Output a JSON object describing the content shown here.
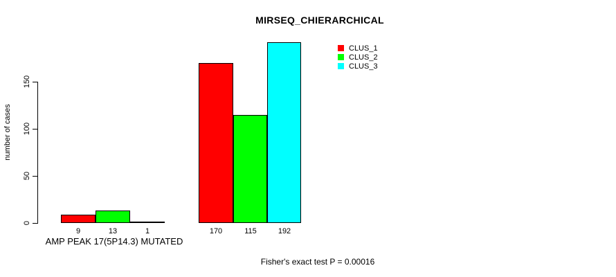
{
  "title": "MIRSEQ_CHIERARCHICAL",
  "footer": "Fisher's exact test P = 0.00016",
  "y_axis": {
    "label": "number of cases",
    "ticks": [
      0,
      50,
      100,
      150
    ]
  },
  "legend": {
    "items": [
      {
        "label": "CLUS_1",
        "color": "#ff0000"
      },
      {
        "label": "CLUS_2",
        "color": "#00ff00"
      },
      {
        "label": "CLUS_3",
        "color": "#00ffff"
      }
    ]
  },
  "chart_data": {
    "type": "bar",
    "title": "MIRSEQ_CHIERARCHICAL",
    "xlabel": "",
    "ylabel": "number of cases",
    "ylim": [
      0,
      195
    ],
    "yticks": [
      0,
      50,
      100,
      150
    ],
    "grid": false,
    "legend_position": "top-right",
    "series_names": [
      "CLUS_1",
      "CLUS_2",
      "CLUS_3"
    ],
    "colors": [
      "#ff0000",
      "#00ff00",
      "#00ffff"
    ],
    "groups": [
      {
        "label": "AMP PEAK 17(5P14.3) MUTATED",
        "values": [
          9,
          13,
          1
        ]
      },
      {
        "label": "",
        "values": [
          170,
          115,
          192
        ]
      }
    ],
    "annotation": "Fisher's exact test P = 0.00016"
  }
}
